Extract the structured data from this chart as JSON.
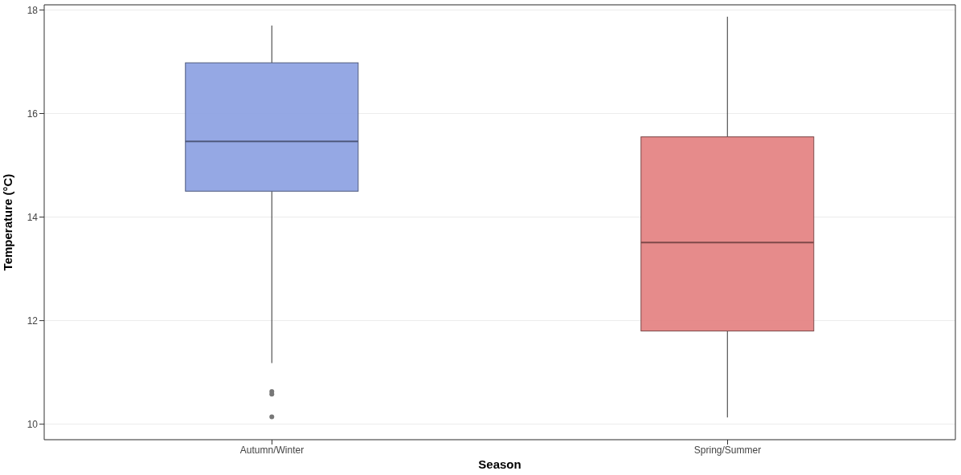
{
  "chart_data": {
    "type": "box",
    "xlabel": "Season",
    "ylabel": "Temperature (°C)",
    "categories": [
      "Autumn/Winter",
      "Spring/Summer"
    ],
    "colors": [
      "#8fa3e3",
      "#e58585"
    ],
    "boxes": [
      {
        "low": 11.18,
        "q1": 14.5,
        "median": 15.46,
        "q3": 16.98,
        "high": 17.7,
        "outliers": [
          10.63,
          10.58,
          10.14
        ]
      },
      {
        "low": 10.13,
        "q1": 11.8,
        "median": 13.51,
        "q3": 15.55,
        "high": 17.87
      }
    ],
    "ylim": [
      9.7,
      18.1
    ],
    "yticks": [
      10,
      12,
      14,
      16,
      18
    ],
    "grid": "y"
  }
}
